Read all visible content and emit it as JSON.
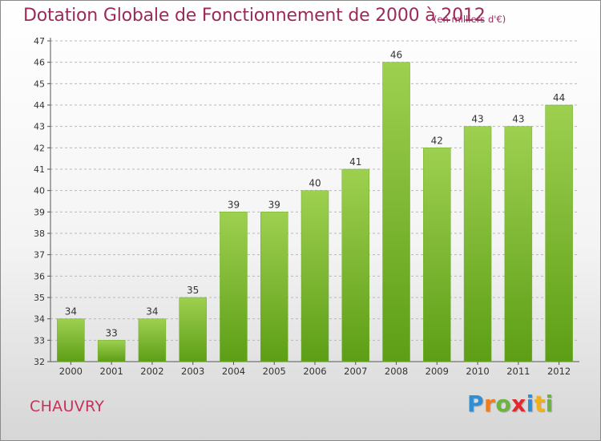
{
  "title": "Dotation Globale de Fonctionnement de 2000 à 2012",
  "subtitle": "(en milliers d'€)",
  "town": "CHAUVRY",
  "logo": {
    "text": "Proxiti",
    "letters": [
      {
        "ch": "P",
        "color": "#2e8fd6"
      },
      {
        "ch": "r",
        "color": "#f07d1a"
      },
      {
        "ch": "o",
        "color": "#6db33f"
      },
      {
        "ch": "x",
        "color": "#e2282f"
      },
      {
        "ch": "i",
        "color": "#2e8fd6"
      },
      {
        "ch": "t",
        "color": "#f0b019"
      },
      {
        "ch": "i",
        "color": "#6db33f"
      }
    ]
  },
  "colors": {
    "title": "#9b2a5a",
    "bar_top": "#9ed050",
    "bar_bottom": "#5d9e16",
    "grid": "#b8b8b8"
  },
  "chart_data": {
    "type": "bar",
    "title": "Dotation Globale de Fonctionnement de 2000 à 2012",
    "subtitle": "(en milliers d'€)",
    "categories": [
      "2000",
      "2001",
      "2002",
      "2003",
      "2004",
      "2005",
      "2006",
      "2007",
      "2008",
      "2009",
      "2010",
      "2011",
      "2012"
    ],
    "values": [
      34,
      33,
      34,
      35,
      39,
      39,
      40,
      41,
      46,
      42,
      43,
      43,
      44
    ],
    "ylim": [
      32,
      47
    ],
    "yticks": [
      32,
      33,
      34,
      35,
      36,
      37,
      38,
      39,
      40,
      41,
      42,
      43,
      44,
      45,
      46,
      47
    ],
    "grid": "horizontal dashed",
    "xlabel": "",
    "ylabel": ""
  }
}
